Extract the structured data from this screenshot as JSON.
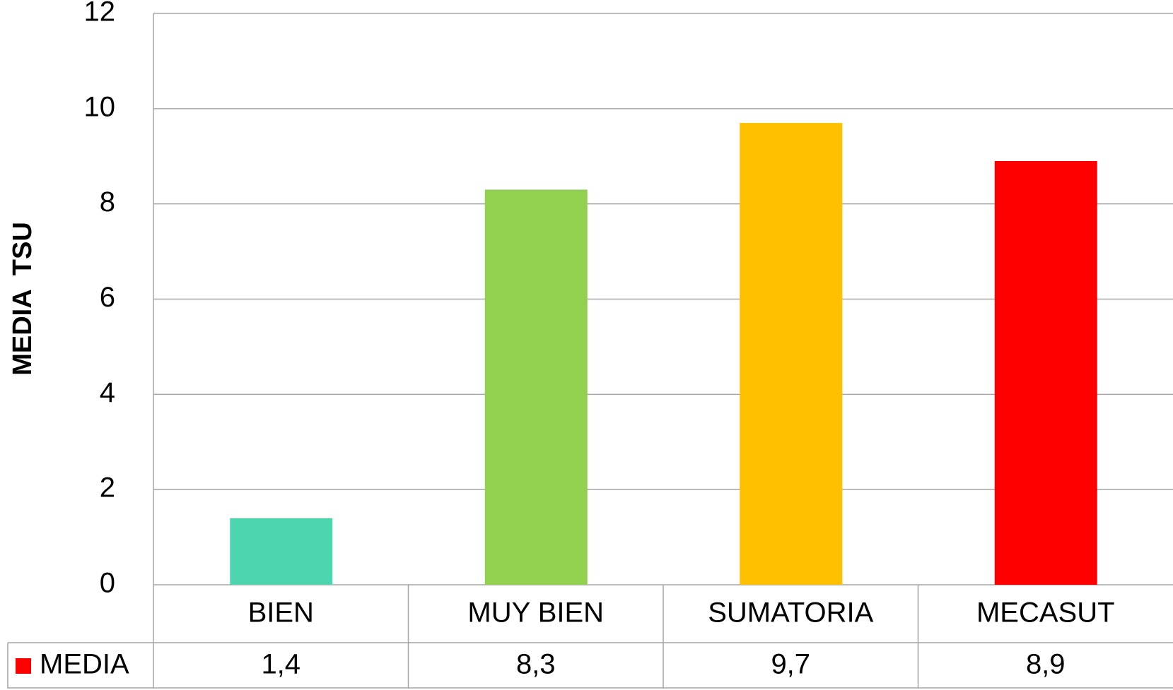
{
  "chart_data": {
    "type": "bar",
    "y_label": "MEDIA TSU",
    "categories": [
      "BIEN",
      "MUY BIEN",
      "SUMATORIA",
      "MECASUT"
    ],
    "series": [
      {
        "name": "MEDIA",
        "color": "#ff0000",
        "colors": [
          "#4dd5b0",
          "#92d050",
          "#ffc000",
          "#ff0000"
        ],
        "values": [
          1.4,
          8.3,
          9.7,
          8.9
        ],
        "value_labels": [
          "1,4",
          "8,3",
          "9,7",
          "8,9"
        ]
      }
    ],
    "ylim": [
      0,
      12
    ],
    "yticks": [
      0,
      2,
      4,
      6,
      8,
      10,
      12
    ],
    "grid": true
  }
}
